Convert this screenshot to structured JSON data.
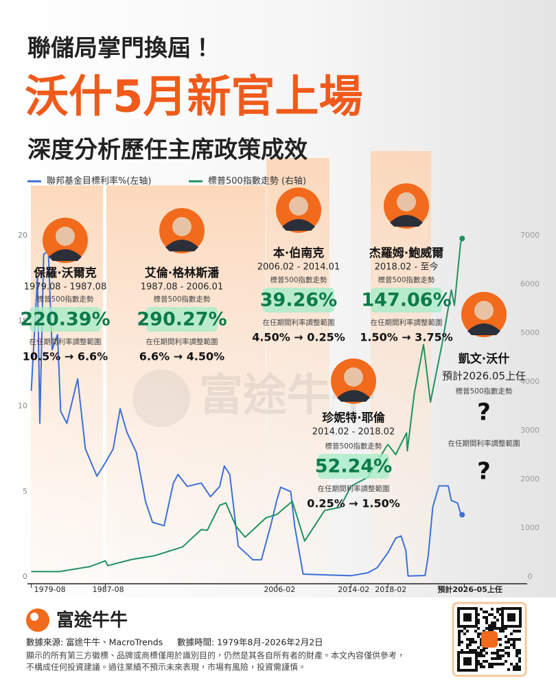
{
  "header": {
    "kicker": "聯儲局掌門換屆！",
    "title": "沃什5月新官上場",
    "subtitle": "深度分析歷任主席政策成效"
  },
  "chart_data": {
    "type": "line",
    "xlim": [
      "1979-03",
      "2032-08"
    ],
    "xticks": [
      "1979-08",
      "1987-08",
      "2006-02",
      "2014-02",
      "2018-02",
      {
        "value": "2026-05",
        "label": "預計2026-05上任"
      }
    ],
    "ylim": [
      0,
      20
    ],
    "yticks": [
      0,
      5,
      10,
      15,
      20
    ],
    "y2lim": [
      0,
      7000
    ],
    "y2ticks": [
      0,
      1000,
      2000,
      3000,
      4000,
      5000,
      6000,
      7000
    ],
    "series": [
      {
        "name": "聯邦基金目標利率%(左轴)",
        "color": "#3b6fd6",
        "axis": "y",
        "x": [
          "1979-08",
          "1980-04",
          "1980-07",
          "1980-12",
          "1981-06",
          "1981-11",
          "1982-06",
          "1982-10",
          "1983-06",
          "1984-08",
          "1985-06",
          "1986-09",
          "1987-08",
          "1988-06",
          "1989-03",
          "1989-12",
          "1990-12",
          "1991-12",
          "1992-09",
          "1993-12",
          "1994-12",
          "1995-06",
          "1996-06",
          "1997-12",
          "1998-12",
          "1999-12",
          "2000-06",
          "2001-01",
          "2001-12",
          "2002-12",
          "2003-07",
          "2004-06",
          "2005-06",
          "2006-02",
          "2006-07",
          "2007-08",
          "2008-01",
          "2008-12",
          "2014-02",
          "2015-12",
          "2016-12",
          "2017-12",
          "2018-02",
          "2018-12",
          "2019-07",
          "2020-01",
          "2020-04",
          "2022-02",
          "2022-06",
          "2022-12",
          "2023-08",
          "2024-08",
          "2024-12",
          "2025-08",
          "2025-12",
          "2026-02"
        ],
        "values": [
          10.9,
          17.6,
          9.0,
          18.9,
          19.1,
          13.3,
          14.2,
          9.7,
          9.0,
          11.6,
          7.5,
          5.9,
          6.7,
          7.5,
          9.85,
          8.45,
          7.3,
          4.4,
          3.2,
          3.0,
          5.5,
          6.0,
          5.3,
          5.5,
          4.7,
          5.3,
          6.5,
          6.0,
          1.8,
          1.3,
          1.0,
          1.0,
          3.0,
          4.5,
          5.25,
          5.0,
          3.0,
          0.16,
          0.07,
          0.24,
          0.54,
          1.3,
          1.42,
          2.27,
          2.4,
          1.55,
          0.05,
          0.08,
          1.21,
          4.1,
          5.33,
          5.33,
          4.48,
          4.33,
          3.72,
          3.64
        ]
      },
      {
        "name": "標普500指數走勢 (右轴)",
        "color": "#1e9160",
        "axis": "y2",
        "x": [
          "1979-08",
          "1982-08",
          "1985-12",
          "1987-08",
          "1987-11",
          "1990-06",
          "1992-12",
          "1995-12",
          "1997-12",
          "1998-08",
          "1999-12",
          "2000-08",
          "2001-09",
          "2002-09",
          "2004-12",
          "2006-02",
          "2007-10",
          "2009-02",
          "2011-04",
          "2012-12",
          "2014-02",
          "2015-12",
          "2017-12",
          "2018-02",
          "2018-12",
          "2020-02",
          "2020-03",
          "2020-12",
          "2021-12",
          "2022-09",
          "2023-12",
          "2024-12",
          "2025-04",
          "2025-12",
          "2026-02"
        ],
        "values": [
          109,
          107,
          211,
          330,
          230,
          358,
          435,
          615,
          970,
          957,
          1469,
          1517,
          1040,
          815,
          1212,
          1280,
          1549,
          735,
          1363,
          1426,
          1859,
          2044,
          2674,
          2714,
          2507,
          2954,
          2585,
          3756,
          4766,
          3586,
          4770,
          5882,
          5570,
          6845,
          6940
        ]
      }
    ]
  },
  "chairs": [
    {
      "name": "保羅·沃爾克",
      "term": "1979.08 - 1987.08",
      "sp_label": "標普500指數走勢",
      "sp_change": "220.39%",
      "rate_label": "在任期間利率調整範圍",
      "rate_range": "10.5% → 6.6%"
    },
    {
      "name": "艾倫·格林斯潘",
      "term": "1987.08 - 2006.01",
      "sp_label": "標普500指數走勢",
      "sp_change": "290.27%",
      "rate_label": "在任期間利率調整範圍",
      "rate_range": "6.6% → 4.50%"
    },
    {
      "name": "本·伯南克",
      "term": "2006.02 - 2014.01",
      "sp_label": "標普500指數走勢",
      "sp_change": "39.26%",
      "rate_label": "在任期間利率調整範圍",
      "rate_range": "4.50% → 0.25%"
    },
    {
      "name": "珍妮特·耶倫",
      "term": "2014.02 - 2018.02",
      "sp_label": "標普500指數走勢",
      "sp_change": "52.24%",
      "rate_label": "在任期間利率調整範圍",
      "rate_range": "0.25% → 1.50%"
    },
    {
      "name": "杰羅姆·鮑威爾",
      "term": "2018.02 - 至今",
      "sp_label": "標普500指數走勢",
      "sp_change": "147.06%",
      "rate_label": "在任期間利率調整範圍",
      "rate_range": "1.50% → 3.75%"
    },
    {
      "name": "凱文·沃什",
      "term": "預計2026.05上任",
      "sp_label": "標普500指數走勢",
      "sp_change": "?",
      "rate_label": "在任期間利率調整範圍",
      "rate_range": "?"
    }
  ],
  "footer": {
    "brand": "富途牛牛",
    "source": "數據來源: 富途牛牛、MacroTrends",
    "data_time": "數據時間: 1979年8月-2026年2月2日",
    "disclaimer": [
      "顯示的所有第三方徽標、品牌或商標僅用於識別目的，仍然是其各自所有者的財產。本文內容僅供參考，",
      "不構成任何投資建議。過往業績不預示未來表現，市場有風險，投資需謹慎。"
    ]
  }
}
